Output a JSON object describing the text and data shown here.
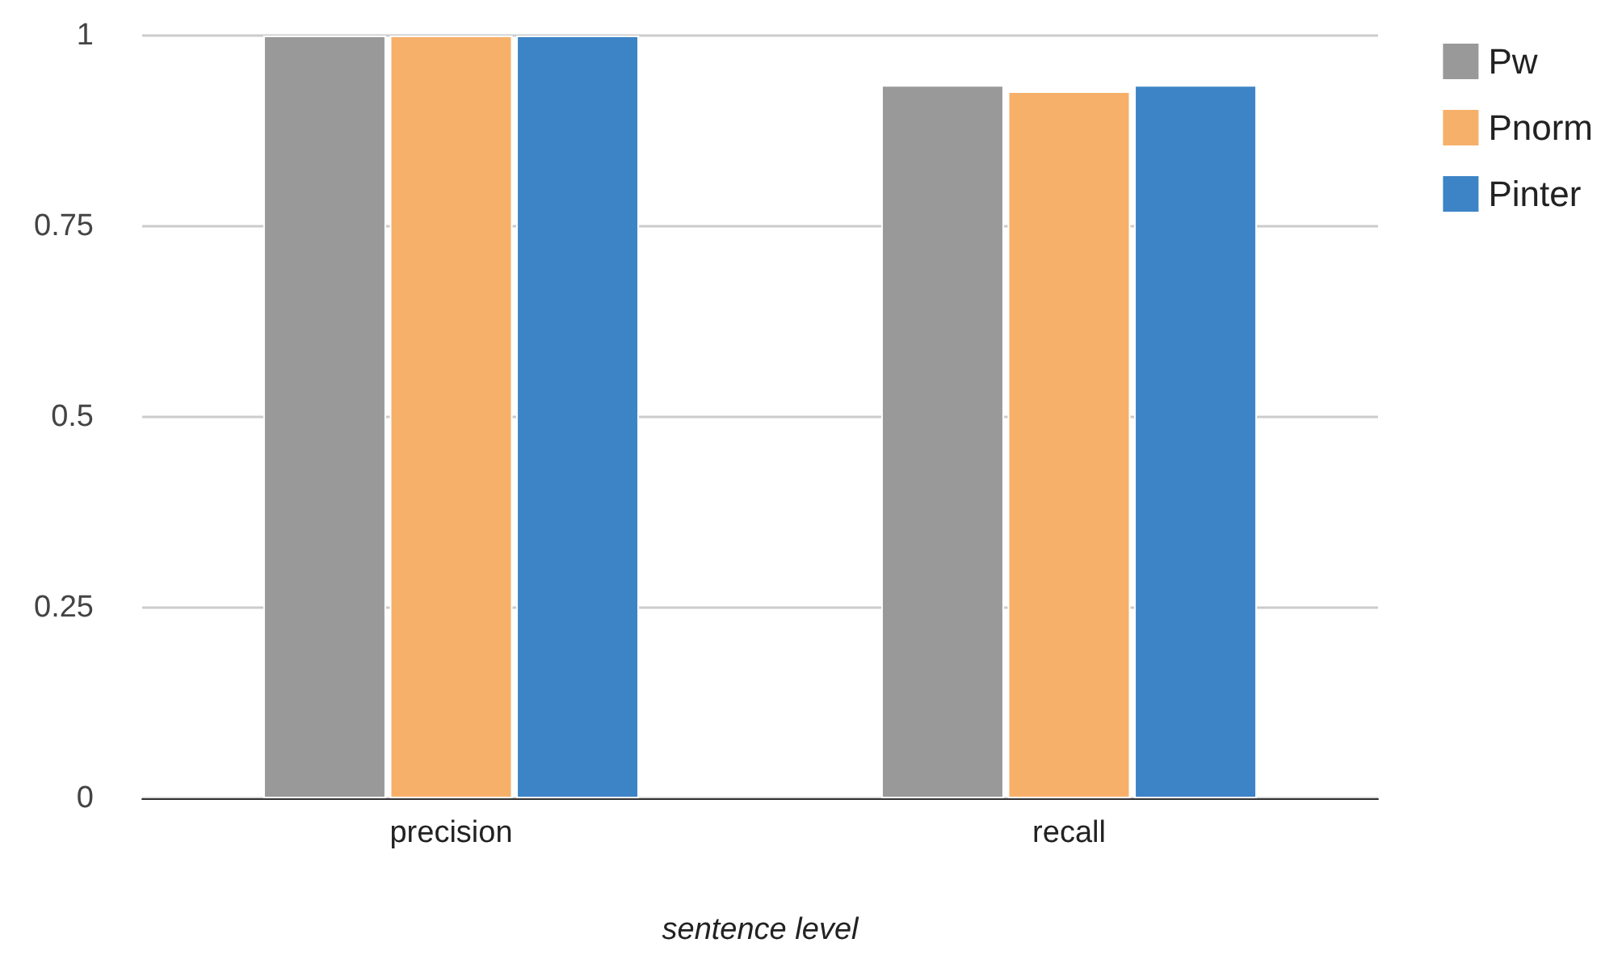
{
  "chart_data": {
    "type": "bar",
    "xlabel": "sentence level",
    "categories": [
      "precision",
      "recall"
    ],
    "series": [
      {
        "name": "Pw",
        "color": "#999999",
        "values": [
          1,
          0.935
        ]
      },
      {
        "name": "Pnorm",
        "color": "#f6b06a",
        "values": [
          1,
          0.927
        ]
      },
      {
        "name": "Pinter",
        "color": "#3d84c6",
        "values": [
          1,
          0.935
        ]
      }
    ],
    "ylim": [
      0,
      1
    ],
    "yticks": [
      0,
      0.25,
      0.5,
      0.75,
      1
    ],
    "grid": "y",
    "legend": "top right"
  }
}
